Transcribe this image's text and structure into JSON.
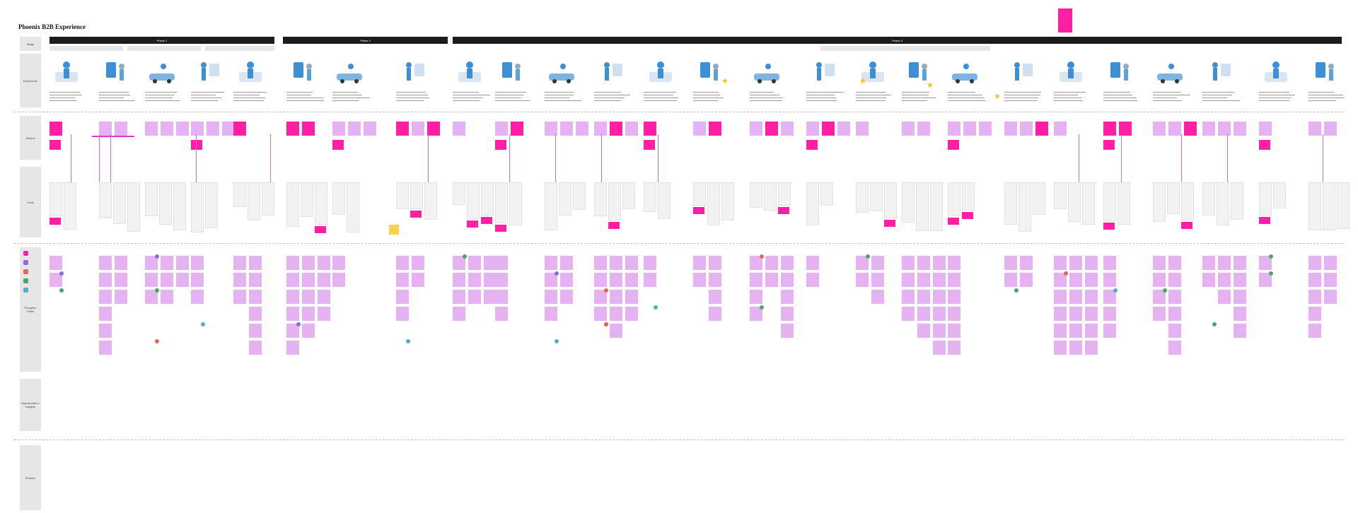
{
  "board": {
    "title": "Phoenix B2B Experience"
  },
  "phases": [
    {
      "label": "Phase 1"
    },
    {
      "label": "Phase 2"
    },
    {
      "label": "Phase 3"
    }
  ],
  "lanes": [
    {
      "label": "Stage"
    },
    {
      "label": "Experience"
    },
    {
      "label": "Actions"
    },
    {
      "label": "Tools"
    },
    {
      "label": "Thoughts / Pains"
    },
    {
      "label": "Opportunities / Insights"
    },
    {
      "label": "Phoenix"
    }
  ],
  "colors": {
    "sticky": "#e6b3f2",
    "sticky_hot": "#ff1fa3",
    "card": "#f2f2f2",
    "phase_bar": "#1c1c1c",
    "lane_label": "#e6e6e6",
    "connector": "#c56ee0",
    "illustration_blue": "#3d8fd6",
    "star": "#f4c31e"
  },
  "legend": [
    {
      "color": "#ff1fa3",
      "icon": "pink-note"
    },
    {
      "color": "#8e6cd8",
      "icon": "purple-note"
    },
    {
      "color": "#e0685a",
      "icon": "red-note"
    },
    {
      "color": "#46a86a",
      "icon": "green-note"
    },
    {
      "color": "#4fb0c8",
      "icon": "teal-note"
    }
  ]
}
